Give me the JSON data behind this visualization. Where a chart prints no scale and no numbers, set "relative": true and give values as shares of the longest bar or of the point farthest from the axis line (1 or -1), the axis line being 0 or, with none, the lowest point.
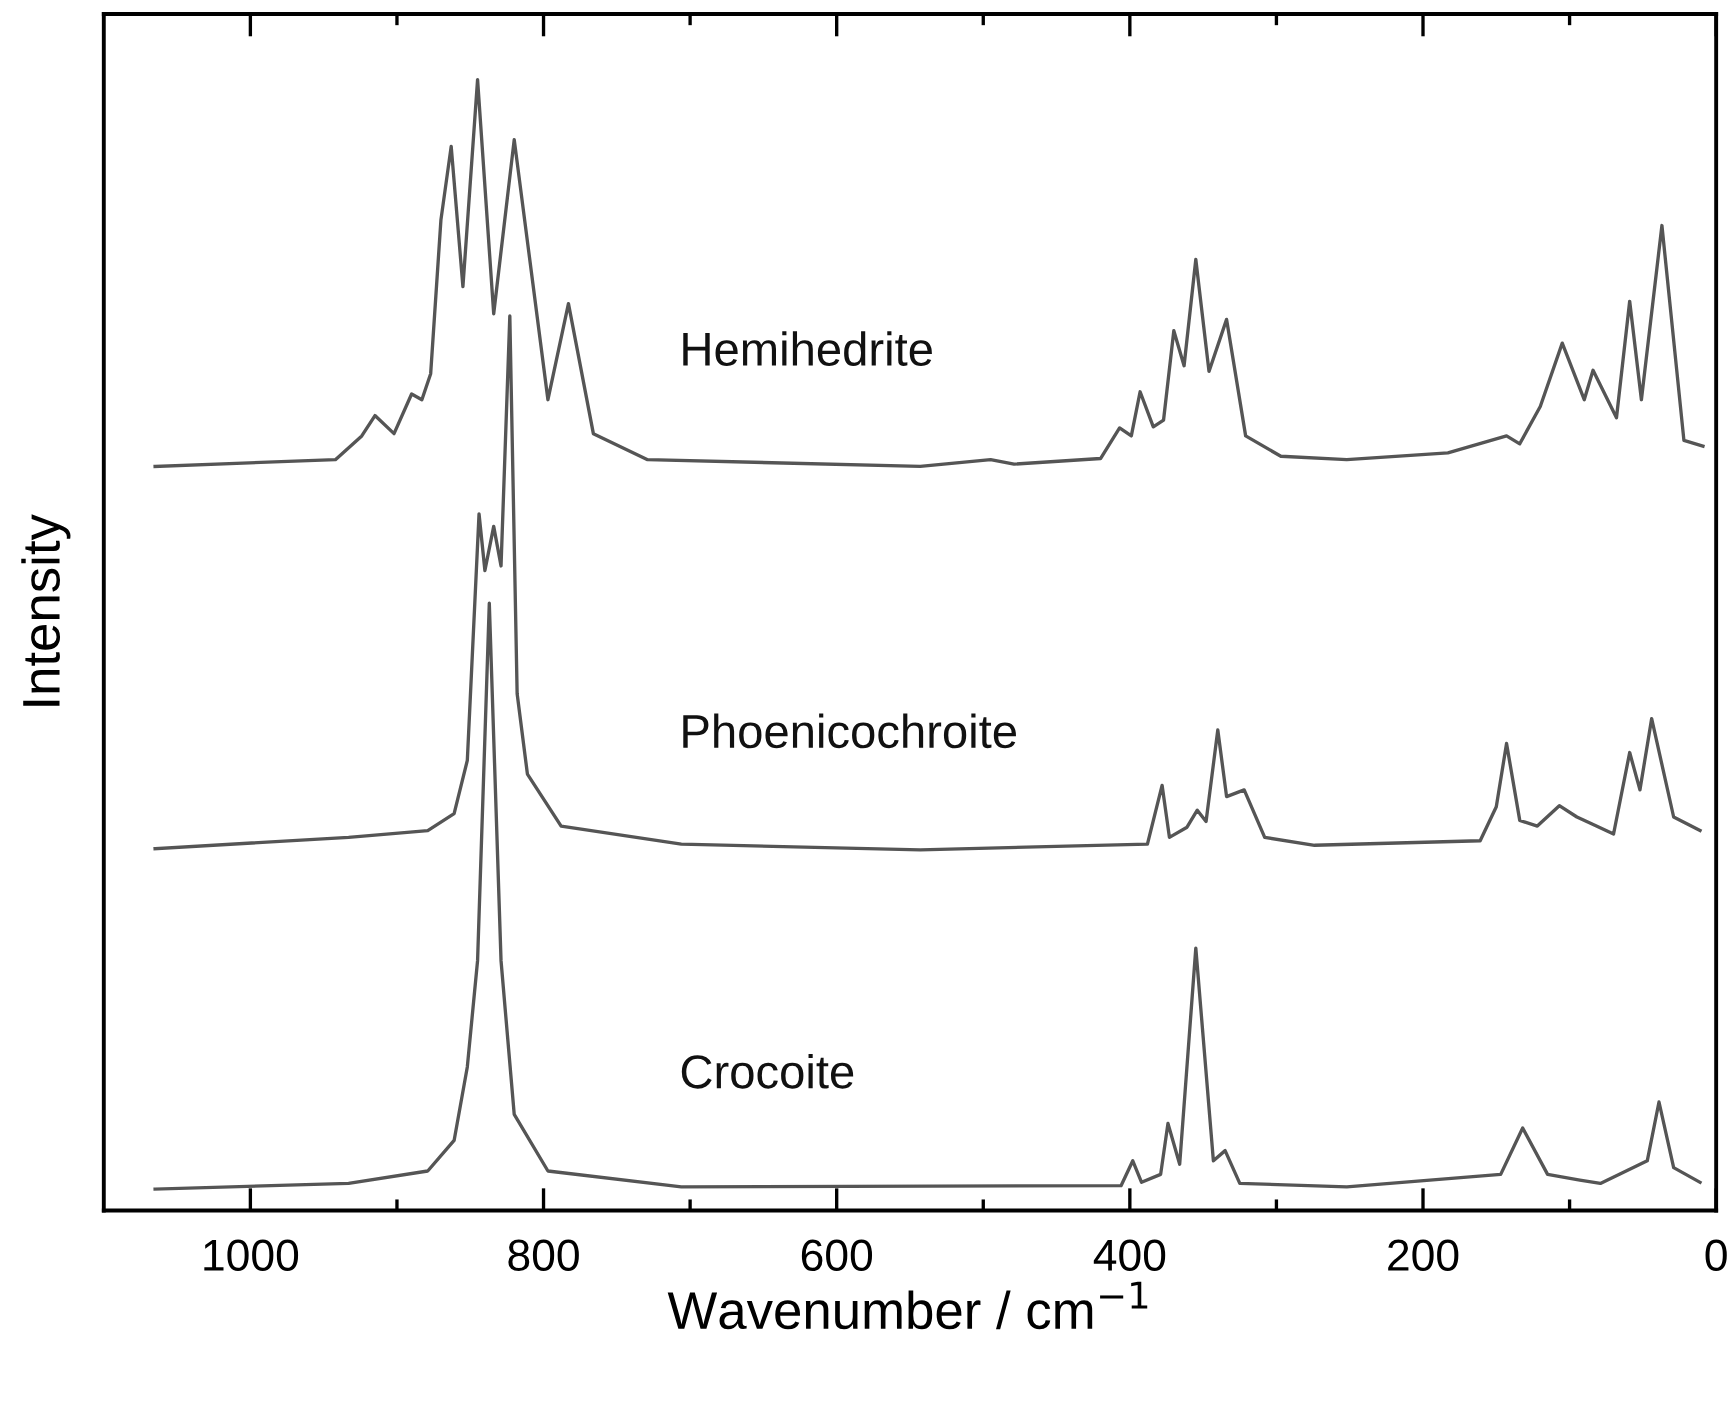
{
  "chart_data": {
    "type": "line",
    "relative": true,
    "xlabel": "Wavenumber / cm$^{−1}$",
    "ylabel": "Intensity",
    "xlim": [
      1100,
      0
    ],
    "xticks": [
      1000,
      {
        "value": 900,
        "label": null
      },
      800,
      {
        "value": 700,
        "label": null
      },
      600,
      {
        "value": 500,
        "label": null
      },
      400,
      {
        "value": 300,
        "label": null
      },
      200,
      {
        "value": 100,
        "label": null
      },
      0
    ],
    "legend": false,
    "grid": false,
    "tick_labels": "x",
    "line_style": "solid",
    "marker": "none",
    "series": [
      {
        "name": "Hemihedrite",
        "color": "#555555",
        "x": [
          1065,
          942,
          924,
          915,
          902,
          890,
          883,
          877,
          870,
          863,
          855,
          845,
          834,
          820,
          797,
          783,
          766,
          729,
          543,
          495,
          479,
          420,
          407,
          399,
          393,
          384,
          377,
          370,
          363,
          355,
          346,
          334,
          321,
          297,
          252,
          183,
          143,
          134,
          120,
          105,
          90,
          84,
          68,
          59,
          51,
          37,
          22,
          9
        ],
        "values": [
          0.658,
          0.664,
          0.685,
          0.703,
          0.687,
          0.722,
          0.717,
          0.74,
          0.876,
          0.941,
          0.817,
          1.0,
          0.793,
          0.947,
          0.717,
          0.802,
          0.687,
          0.664,
          0.658,
          0.664,
          0.66,
          0.665,
          0.692,
          0.685,
          0.724,
          0.693,
          0.699,
          0.778,
          0.747,
          0.841,
          0.742,
          0.788,
          0.685,
          0.667,
          0.664,
          0.67,
          0.685,
          0.678,
          0.711,
          0.767,
          0.717,
          0.743,
          0.701,
          0.804,
          0.717,
          0.871,
          0.681,
          0.676
        ]
      },
      {
        "name": "Phoenicochroite",
        "color": "#555555",
        "x": [
          1065,
          933,
          879,
          861,
          852,
          844,
          840,
          834,
          829,
          823,
          818,
          811,
          788,
          706,
          543,
          388,
          378,
          373,
          361,
          354,
          348,
          340,
          334,
          322,
          308,
          274,
          161,
          150,
          143,
          134,
          122,
          107,
          95,
          85,
          70,
          59,
          52,
          44,
          29,
          11
        ],
        "values": [
          0.32,
          0.33,
          0.336,
          0.351,
          0.398,
          0.616,
          0.566,
          0.605,
          0.57,
          0.791,
          0.457,
          0.386,
          0.34,
          0.324,
          0.319,
          0.324,
          0.376,
          0.33,
          0.339,
          0.354,
          0.344,
          0.425,
          0.366,
          0.372,
          0.33,
          0.323,
          0.327,
          0.357,
          0.413,
          0.345,
          0.34,
          0.358,
          0.348,
          0.342,
          0.333,
          0.405,
          0.372,
          0.435,
          0.348,
          0.336
        ]
      },
      {
        "name": "Crocoite",
        "color": "#555555",
        "x": [
          1065,
          933,
          879,
          861,
          852,
          845,
          837,
          829,
          820,
          797,
          706,
          406,
          398,
          392,
          379,
          374,
          366,
          355,
          343,
          335,
          325,
          252,
          147,
          132,
          115,
          93,
          79,
          47,
          39,
          29,
          11
        ],
        "values": [
          0.019,
          0.024,
          0.035,
          0.062,
          0.127,
          0.221,
          0.537,
          0.221,
          0.085,
          0.035,
          0.021,
          0.022,
          0.044,
          0.025,
          0.032,
          0.077,
          0.041,
          0.232,
          0.044,
          0.053,
          0.024,
          0.021,
          0.032,
          0.073,
          0.032,
          0.027,
          0.024,
          0.044,
          0.096,
          0.038,
          0.025
        ]
      }
    ]
  }
}
